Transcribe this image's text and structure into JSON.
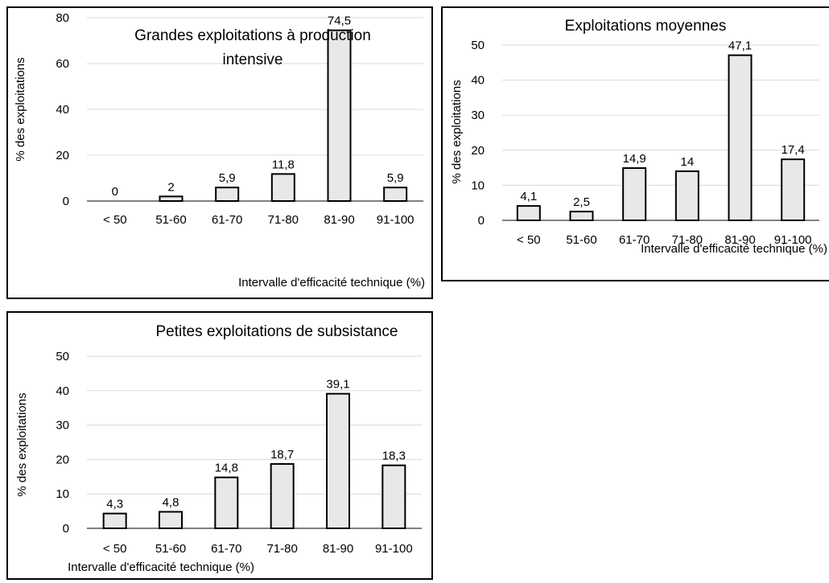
{
  "chart_data": [
    {
      "type": "bar",
      "title_lines": [
        "Grandes exploitations à production",
        "intensive"
      ],
      "categories": [
        "< 50",
        "51-60",
        "61-70",
        "71-80",
        "81-90",
        "91-100"
      ],
      "values": [
        0,
        2,
        5.9,
        11.8,
        74.5,
        5.9
      ],
      "value_labels": [
        "0",
        "2",
        "5,9",
        "11,8",
        "74,5",
        "5,9"
      ],
      "xlabel": "Intervalle d'efficacité technique (%)",
      "ylabel": "% des exploitations",
      "ylim": [
        0,
        80
      ],
      "yticks": [
        0,
        20,
        40,
        60,
        80
      ],
      "grid": true
    },
    {
      "type": "bar",
      "title_lines": [
        "Exploitations moyennes"
      ],
      "categories": [
        "< 50",
        "51-60",
        "61-70",
        "71-80",
        "81-90",
        "91-100"
      ],
      "values": [
        4.1,
        2.5,
        14.9,
        14,
        47.1,
        17.4
      ],
      "value_labels": [
        "4,1",
        "2,5",
        "14,9",
        "14",
        "47,1",
        "17,4"
      ],
      "xlabel": "Intervalle d'efficacité technique (%)",
      "ylabel": "% des exploitations",
      "ylim": [
        0,
        50
      ],
      "yticks": [
        0,
        10,
        20,
        30,
        40,
        50
      ],
      "grid": true
    },
    {
      "type": "bar",
      "title_lines": [
        "Petites exploitations de subsistance"
      ],
      "categories": [
        "< 50",
        "51-60",
        "61-70",
        "71-80",
        "81-90",
        "91-100"
      ],
      "values": [
        4.3,
        4.8,
        14.8,
        18.7,
        39.1,
        18.3
      ],
      "value_labels": [
        "4,3",
        "4,8",
        "14,8",
        "18,7",
        "39,1",
        "18,3"
      ],
      "xlabel": "Intervalle d'efficacité technique (%)",
      "ylabel": "% des exploitations",
      "ylim": [
        0,
        50
      ],
      "yticks": [
        0,
        10,
        20,
        30,
        40,
        50
      ],
      "grid": true
    }
  ]
}
